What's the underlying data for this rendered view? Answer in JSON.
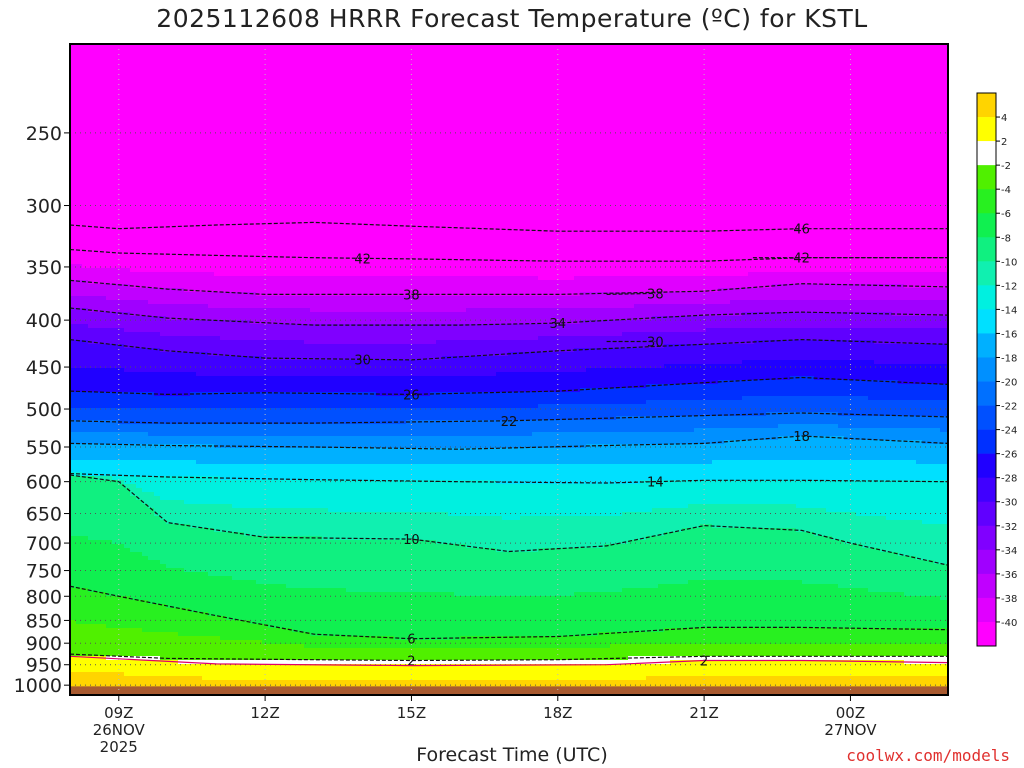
{
  "chart_data": {
    "type": "heatmap",
    "title": "2025112608 HRRR Forecast Temperature (ºC) for KSTL",
    "xlabel": "Forecast Time (UTC)",
    "ylabel": "",
    "credit": "coolwx.com/models",
    "x_ticks": [
      {
        "hour": 9,
        "lines": [
          "09Z",
          "26NOV",
          "2025"
        ]
      },
      {
        "hour": 12,
        "lines": [
          "12Z"
        ]
      },
      {
        "hour": 15,
        "lines": [
          "15Z"
        ]
      },
      {
        "hour": 18,
        "lines": [
          "18Z"
        ]
      },
      {
        "hour": 21,
        "lines": [
          "21Z"
        ]
      },
      {
        "hour": 24,
        "lines": [
          "00Z",
          "27NOV"
        ]
      }
    ],
    "xlim": [
      8,
      26
    ],
    "y_ticks": [
      250,
      300,
      350,
      400,
      450,
      500,
      550,
      600,
      650,
      700,
      750,
      800,
      850,
      900,
      950,
      1000
    ],
    "ylim_hPa": [
      200,
      1025
    ],
    "y_scale": "log",
    "grid": true,
    "colorbar": {
      "labels": [
        "4",
        "2",
        "-2",
        "-4",
        "-6",
        "-8",
        "-10",
        "-12",
        "-14",
        "-16",
        "-18",
        "-20",
        "-22",
        "-24",
        "-26",
        "-28",
        "-30",
        "-32",
        "-34",
        "-36",
        "-38",
        "-40"
      ],
      "bins": [
        {
          "min": 4,
          "max": 6,
          "color": "#ffd400"
        },
        {
          "min": 2,
          "max": 4,
          "color": "#ffff00"
        },
        {
          "min": -2,
          "max": 2,
          "color": "#ffffff"
        },
        {
          "min": -4,
          "max": -2,
          "color": "#50f000"
        },
        {
          "min": -6,
          "max": -4,
          "color": "#28f020"
        },
        {
          "min": -8,
          "max": -6,
          "color": "#10f050"
        },
        {
          "min": -10,
          "max": -8,
          "color": "#10f080"
        },
        {
          "min": -12,
          "max": -10,
          "color": "#10f0b0"
        },
        {
          "min": -14,
          "max": -12,
          "color": "#00f0e0"
        },
        {
          "min": -16,
          "max": -14,
          "color": "#00e0ff"
        },
        {
          "min": -18,
          "max": -16,
          "color": "#00b0ff"
        },
        {
          "min": -20,
          "max": -18,
          "color": "#0090ff"
        },
        {
          "min": -22,
          "max": -20,
          "color": "#0070ff"
        },
        {
          "min": -24,
          "max": -22,
          "color": "#0050ff"
        },
        {
          "min": -26,
          "max": -24,
          "color": "#0030ff"
        },
        {
          "min": -28,
          "max": -26,
          "color": "#2000ff"
        },
        {
          "min": -30,
          "max": -28,
          "color": "#4000ff"
        },
        {
          "min": -32,
          "max": -30,
          "color": "#6000ff"
        },
        {
          "min": -34,
          "max": -32,
          "color": "#8000ff"
        },
        {
          "min": -36,
          "max": -34,
          "color": "#a000ff"
        },
        {
          "min": -38,
          "max": -36,
          "color": "#c000ff"
        },
        {
          "min": -40,
          "max": -38,
          "color": "#e000ff"
        },
        {
          "min": -60,
          "max": -40,
          "color": "#ff00ff"
        }
      ]
    },
    "contours": [
      {
        "value": -46,
        "label": "46",
        "points": [
          [
            8,
            315
          ],
          [
            9,
            318
          ],
          [
            11,
            315
          ],
          [
            13,
            313
          ],
          [
            15,
            316
          ],
          [
            18,
            320
          ],
          [
            21,
            320
          ],
          [
            23,
            318
          ],
          [
            26,
            318
          ]
        ],
        "label_x": 23
      },
      {
        "value": -42,
        "label": "42",
        "points": [
          [
            8,
            335
          ],
          [
            9,
            338
          ],
          [
            11,
            340
          ],
          [
            13,
            342
          ],
          [
            15,
            343
          ],
          [
            18,
            345
          ],
          [
            21,
            345
          ],
          [
            23,
            342
          ],
          [
            26,
            342
          ]
        ],
        "label_x": 14
      },
      {
        "value": -42,
        "label": "42",
        "points": [
          [
            22,
            342
          ],
          [
            23,
            342
          ],
          [
            26,
            342
          ]
        ],
        "label_x": 23
      },
      {
        "value": -38,
        "label": "38",
        "points": [
          [
            8,
            362
          ],
          [
            10,
            370
          ],
          [
            12,
            375
          ],
          [
            15,
            375
          ],
          [
            18,
            375
          ],
          [
            21,
            372
          ],
          [
            23,
            365
          ],
          [
            26,
            368
          ]
        ],
        "label_x": 15
      },
      {
        "value": -38,
        "label": "38",
        "points": [
          [
            19,
            375
          ],
          [
            20,
            374
          ]
        ],
        "label_x": 20
      },
      {
        "value": -34,
        "label": "34",
        "points": [
          [
            8,
            388
          ],
          [
            10,
            398
          ],
          [
            13,
            405
          ],
          [
            16,
            405
          ],
          [
            18,
            403
          ],
          [
            21,
            395
          ],
          [
            23,
            392
          ],
          [
            26,
            395
          ]
        ],
        "label_x": 18
      },
      {
        "value": -30,
        "label": "30",
        "points": [
          [
            8,
            420
          ],
          [
            10,
            432
          ],
          [
            12,
            440
          ],
          [
            15,
            442
          ],
          [
            18,
            432
          ],
          [
            21,
            425
          ],
          [
            23,
            420
          ],
          [
            26,
            425
          ]
        ],
        "label_x": 14
      },
      {
        "value": -30,
        "label": "30",
        "points": [
          [
            19,
            422
          ],
          [
            20,
            422
          ]
        ],
        "label_x": 20
      },
      {
        "value": -26,
        "label": "26",
        "points": [
          [
            8,
            478
          ],
          [
            10,
            482
          ],
          [
            12,
            480
          ],
          [
            15,
            482
          ],
          [
            18,
            478
          ],
          [
            21,
            468
          ],
          [
            23,
            462
          ],
          [
            26,
            470
          ]
        ],
        "label_x": 15
      },
      {
        "value": -22,
        "label": "22",
        "points": [
          [
            8,
            515
          ],
          [
            10,
            518
          ],
          [
            13,
            518
          ],
          [
            17,
            515
          ],
          [
            20,
            510
          ],
          [
            23,
            505
          ],
          [
            26,
            510
          ]
        ],
        "label_x": 17
      },
      {
        "value": -18,
        "label": "18",
        "points": [
          [
            8,
            545
          ],
          [
            10,
            548
          ],
          [
            13,
            550
          ],
          [
            16,
            553
          ],
          [
            19,
            548
          ],
          [
            21,
            545
          ],
          [
            23,
            535
          ],
          [
            26,
            545
          ]
        ],
        "label_x": 23
      },
      {
        "value": -14,
        "label": "14",
        "points": [
          [
            8,
            588
          ],
          [
            10,
            593
          ],
          [
            13,
            597
          ],
          [
            16,
            600
          ],
          [
            19,
            602
          ],
          [
            21,
            598
          ],
          [
            23,
            598
          ],
          [
            26,
            600
          ]
        ],
        "label_x": 20
      },
      {
        "value": -10,
        "label": "10",
        "points": [
          [
            8,
            590
          ],
          [
            9,
            600
          ],
          [
            10,
            665
          ],
          [
            12,
            690
          ],
          [
            15,
            693
          ],
          [
            17,
            715
          ],
          [
            19,
            705
          ],
          [
            21,
            670
          ],
          [
            23,
            678
          ],
          [
            24,
            700
          ],
          [
            26,
            740
          ]
        ],
        "label_x": 15
      },
      {
        "value": -6,
        "label": "6",
        "points": [
          [
            8,
            780
          ],
          [
            9,
            800
          ],
          [
            11,
            840
          ],
          [
            13,
            880
          ],
          [
            15,
            890
          ],
          [
            18,
            885
          ],
          [
            21,
            865
          ],
          [
            23,
            865
          ],
          [
            26,
            870
          ]
        ],
        "label_x": 15
      },
      {
        "value": -2,
        "label": "2",
        "points": [
          [
            8,
            925
          ],
          [
            10,
            935
          ],
          [
            13,
            938
          ],
          [
            15,
            940
          ],
          [
            18,
            938
          ],
          [
            21,
            930
          ],
          [
            23,
            930
          ],
          [
            26,
            930
          ]
        ],
        "label_x": 15
      },
      {
        "value": 2,
        "label": "2",
        "points": [
          [
            8,
            930
          ],
          [
            11,
            948
          ],
          [
            15,
            952
          ],
          [
            19,
            950
          ],
          [
            21,
            940
          ],
          [
            23,
            940
          ],
          [
            26,
            945
          ]
        ],
        "label_x": 21
      }
    ]
  }
}
